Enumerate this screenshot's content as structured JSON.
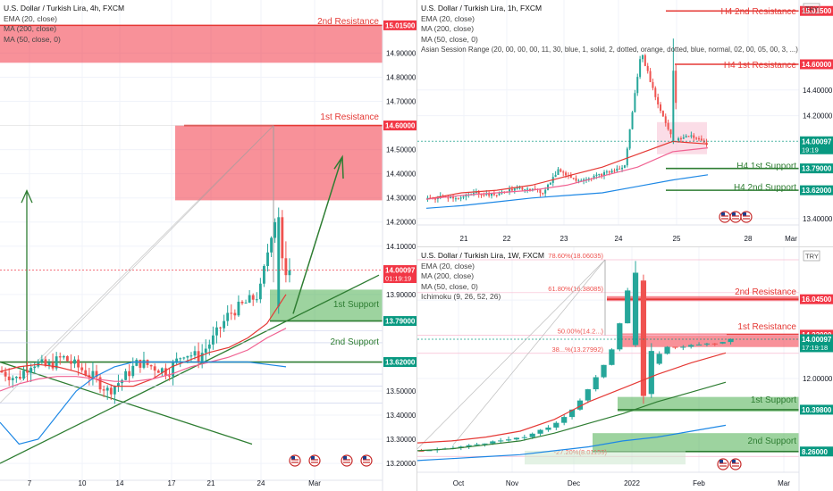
{
  "panels": [
    {
      "id": "p4h",
      "legend": {
        "title": "U.S. Dollar / Turkish Lira, 4h, FXCM",
        "lines": [
          "EMA (20, close)",
          "MA (200, close)",
          "MA (50, close, 0)"
        ]
      },
      "currency": "",
      "y_ticks": [
        "14.90000",
        "14.80000",
        "14.70000",
        "14.50000",
        "14.40000",
        "14.30000",
        "14.20000",
        "14.10000",
        "13.90000",
        "13.50000",
        "13.40000",
        "13.30000",
        "13.20000"
      ],
      "x_ticks": [
        "7",
        "10",
        "14",
        "17",
        "21",
        "24",
        "Mar"
      ],
      "price_tags": [
        {
          "text": "15.01500",
          "color": "#f23645"
        },
        {
          "text": "14.60000",
          "color": "#f23645"
        },
        {
          "text": "14.00097",
          "sub": "01:19:19",
          "color": "#f23645"
        },
        {
          "text": "13.79000",
          "color": "#089981"
        },
        {
          "text": "13.62000",
          "color": "#089981"
        }
      ],
      "labels": [
        {
          "text": "2nd Resistance",
          "color": "#e53935"
        },
        {
          "text": "1st Resistance",
          "color": "#e53935"
        },
        {
          "text": "1st Support",
          "color": "#2e7d32"
        },
        {
          "text": "2nd Support",
          "color": "#2e7d32"
        }
      ]
    },
    {
      "id": "p1h",
      "legend": {
        "title": "U.S. Dollar / Turkish Lira, 1h, FXCM",
        "lines": [
          "EMA (20, close)",
          "MA (200, close)",
          "MA (50, close, 0)",
          "Asian Session Range (20, 00, 00, 00, 11, 30, blue, 1, solid, 2, dotted, orange, dotted, blue, normal, 02, 00, 05, 00, 3, ...)"
        ]
      },
      "currency": "TRY",
      "y_ticks": [
        "14.40000",
        "14.20000",
        "13.40000"
      ],
      "x_ticks": [
        "21",
        "22",
        "23",
        "24",
        "25",
        "28",
        "Mar"
      ],
      "price_tags": [
        {
          "text": "15.01500",
          "color": "#f23645"
        },
        {
          "text": "14.60000",
          "color": "#f23645"
        },
        {
          "text": "14.00097",
          "sub": "19:19",
          "color": "#089981"
        },
        {
          "text": "13.79000",
          "color": "#089981"
        },
        {
          "text": "13.62000",
          "color": "#089981"
        }
      ],
      "labels": [
        {
          "text": "H4 2nd Resistance",
          "color": "#e53935"
        },
        {
          "text": "H4 1st Resistance",
          "color": "#e53935"
        },
        {
          "text": "H4 1st Support",
          "color": "#2e7d32"
        },
        {
          "text": "H4 2nd Support",
          "color": "#2e7d32"
        }
      ]
    },
    {
      "id": "p1w",
      "legend": {
        "title": "U.S. Dollar / Turkish Lira, 1W, FXCM",
        "lines": [
          "EMA (20, close)",
          "MA (200, close)",
          "MA (50, close, 0)",
          "Ichimoku (9, 26, 52, 26)"
        ]
      },
      "currency": "TRY",
      "y_ticks": [
        "16.00000",
        "12.00000"
      ],
      "x_ticks": [
        "Oct",
        "Nov",
        "Dec",
        "2022",
        "Feb",
        "Mar"
      ],
      "price_tags": [
        {
          "text": "16.04500",
          "color": "#f23645"
        },
        {
          "text": "14.23000",
          "color": "#f23645"
        },
        {
          "text": "14.00097",
          "sub": "17:19:18",
          "color": "#089981"
        },
        {
          "text": "10.39800",
          "color": "#089981"
        },
        {
          "text": "8.26000",
          "color": "#089981"
        }
      ],
      "labels": [
        {
          "text": "2nd Resistance",
          "color": "#e53935"
        },
        {
          "text": "1st Resistance",
          "color": "#e53935"
        },
        {
          "text": "1st Support",
          "color": "#2e7d32"
        },
        {
          "text": "2nd Support",
          "color": "#2e7d32"
        }
      ],
      "fib_labels": [
        "78.60%(18.06035)",
        "61.80%(16.38085)",
        "50.00%(14.2...)",
        "38...%(13.27992)",
        "-27.20%(8.01159)"
      ]
    }
  ],
  "chart_data": [
    {
      "type": "line",
      "title": "U.S. Dollar / Turkish Lira, 4h, FXCM",
      "ylim": [
        13.13,
        15.12
      ],
      "x_ticks": [
        "7",
        "10",
        "14",
        "17",
        "21",
        "24",
        "Mar"
      ],
      "series": [
        {
          "name": "EMA (20, close)",
          "values": [
            13.58,
            13.6,
            13.61,
            13.6,
            13.58,
            13.55,
            13.52,
            13.52,
            13.55,
            13.6,
            13.63,
            13.66,
            13.68,
            13.72,
            13.78,
            13.9
          ]
        },
        {
          "name": "MA (50, close, 0)",
          "values": [
            13.5,
            13.53,
            13.55,
            13.56,
            13.56,
            13.55,
            13.54,
            13.54,
            13.55,
            13.57,
            13.6,
            13.62,
            13.64,
            13.67,
            13.72,
            13.76
          ]
        },
        {
          "name": "MA (200, close)",
          "values": [
            13.37,
            13.28,
            13.3,
            13.4,
            13.5,
            13.56,
            13.6,
            13.62,
            13.62,
            13.62,
            13.62,
            13.62,
            13.62,
            13.62,
            13.61,
            13.6
          ]
        }
      ],
      "levels": [
        {
          "label": "2nd Resistance",
          "value": 15.015
        },
        {
          "label": "1st Resistance",
          "value": 14.6
        },
        {
          "label": "1st Support",
          "value": 13.79
        },
        {
          "label": "2nd Support",
          "value": 13.62
        }
      ],
      "last_price": 14.00097
    },
    {
      "type": "line",
      "title": "U.S. Dollar / Turkish Lira, 1h, FXCM",
      "ylim": [
        13.35,
        15.1
      ],
      "x_ticks": [
        "21",
        "22",
        "23",
        "24",
        "25",
        "28",
        "Mar"
      ],
      "series": [
        {
          "name": "EMA (20, close)",
          "values": [
            13.55,
            13.6,
            13.62,
            13.66,
            13.73,
            13.8,
            13.9,
            14.0,
            13.98
          ]
        },
        {
          "name": "MA (50, close, 0)",
          "values": [
            13.55,
            13.58,
            13.6,
            13.62,
            13.66,
            13.73,
            13.8,
            13.92,
            13.95
          ]
        },
        {
          "name": "MA (200, close)",
          "values": [
            13.48,
            13.5,
            13.53,
            13.56,
            13.58,
            13.6,
            13.65,
            13.7,
            13.74
          ]
        }
      ],
      "levels": [
        {
          "label": "H4 2nd Resistance",
          "value": 15.015
        },
        {
          "label": "H4 1st Resistance",
          "value": 14.6
        },
        {
          "label": "H4 1st Support",
          "value": 13.79
        },
        {
          "label": "H4 2nd Support",
          "value": 13.62
        }
      ],
      "last_price": 14.00097
    },
    {
      "type": "line",
      "title": "U.S. Dollar / Turkish Lira, 1W, FXCM",
      "ylim": [
        7.2,
        18.7
      ],
      "x_ticks": [
        "Oct",
        "Nov",
        "Dec",
        "2022",
        "Feb",
        "Mar"
      ],
      "series": [
        {
          "name": "EMA (20, close)",
          "values": [
            8.7,
            8.8,
            9.0,
            9.3,
            9.9,
            10.8,
            11.5,
            12.2,
            12.8,
            13.3
          ]
        },
        {
          "name": "MA (200, close)",
          "values": [
            7.8,
            7.9,
            8.0,
            8.1,
            8.3,
            8.5,
            8.8,
            9.0,
            9.3,
            9.6
          ]
        },
        {
          "name": "MA (50, close, 0)",
          "values": [
            8.3,
            8.4,
            8.6,
            8.8,
            9.2,
            9.7,
            10.2,
            10.8,
            11.3,
            11.8
          ]
        }
      ],
      "levels": [
        {
          "label": "2nd Resistance",
          "value": 16.045
        },
        {
          "label": "1st Resistance",
          "value": 14.23
        },
        {
          "label": "1st Support",
          "value": 10.398
        },
        {
          "label": "2nd Support",
          "value": 8.26
        }
      ],
      "fib_levels": [
        {
          "ratio": "78.60%",
          "value": 18.06035
        },
        {
          "ratio": "61.80%",
          "value": 16.38085
        },
        {
          "ratio": "50.00%",
          "value": 14.2
        },
        {
          "ratio": "38...%",
          "value": 13.27992
        },
        {
          "ratio": "-27.20%",
          "value": 8.01159
        }
      ],
      "last_price": 14.00097
    }
  ]
}
